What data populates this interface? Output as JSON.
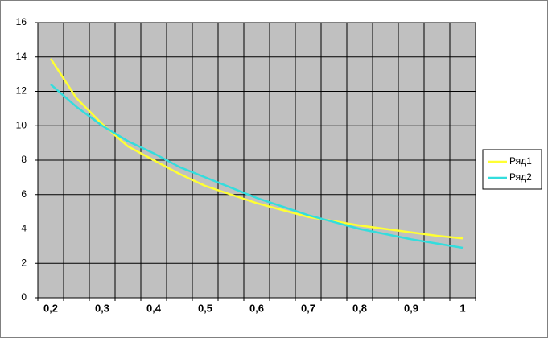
{
  "chart_data": {
    "type": "line",
    "categories": [
      "0,2",
      null,
      "0,3",
      null,
      "0,4",
      null,
      "0,5",
      null,
      "0,6",
      null,
      "0,7",
      null,
      "0,8",
      null,
      "0,9",
      null,
      "1"
    ],
    "series": [
      {
        "name": "Ряд1",
        "color": "#ffff33",
        "values": [
          13.9,
          11.6,
          10.1,
          8.8,
          8.0,
          7.2,
          6.5,
          6.0,
          5.5,
          5.1,
          4.7,
          4.45,
          4.2,
          4.0,
          3.8,
          3.6,
          3.45
        ]
      },
      {
        "name": "Ряд2",
        "color": "#33dddd",
        "values": [
          12.4,
          11.1,
          10.0,
          9.1,
          8.4,
          7.6,
          7.0,
          6.4,
          5.8,
          5.3,
          4.8,
          4.4,
          4.0,
          3.7,
          3.4,
          3.15,
          2.9
        ]
      }
    ],
    "ylim": [
      0,
      16
    ],
    "yticks": [
      0,
      2,
      4,
      6,
      8,
      10,
      12,
      14,
      16
    ],
    "grid": true,
    "legend": "right"
  }
}
